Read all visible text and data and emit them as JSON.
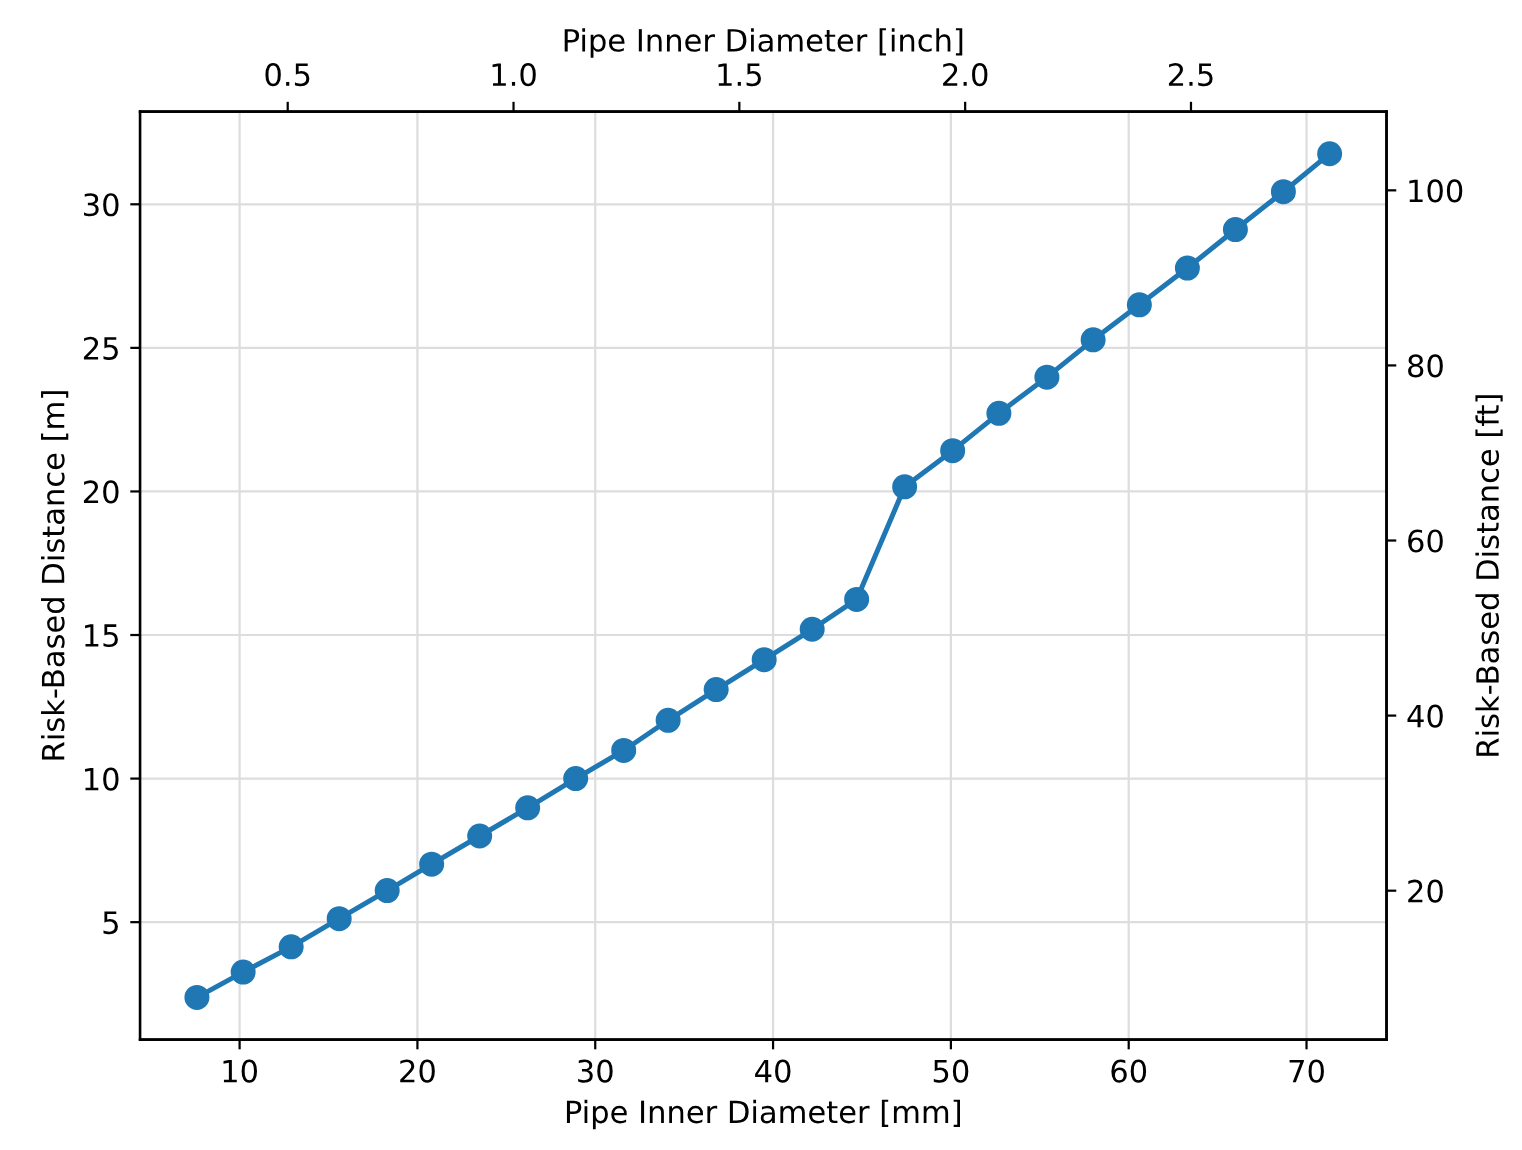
{
  "chart_data": {
    "type": "line",
    "xlabel": "Pipe Inner Diameter [mm]",
    "ylabel": "Risk-Based Distance [m]",
    "x2label": "Pipe Inner Diameter [inch]",
    "y2label": "Risk-Based Distance [ft]",
    "x": [
      7.6,
      10.2,
      12.9,
      15.6,
      18.3,
      20.8,
      23.5,
      26.2,
      28.9,
      31.6,
      34.1,
      36.8,
      39.5,
      42.2,
      44.7,
      47.4,
      50.1,
      52.7,
      55.4,
      58.0,
      60.6,
      63.3,
      66.0,
      68.7,
      71.3
    ],
    "series": [
      {
        "color": "#1f77b4",
        "values": [
          2.38,
          3.26,
          4.14,
          5.12,
          6.1,
          7.02,
          8.0,
          8.98,
          10.0,
          10.98,
          12.03,
          13.1,
          14.14,
          15.2,
          16.24,
          20.16,
          21.42,
          22.72,
          23.98,
          25.28,
          26.5,
          27.78,
          29.12,
          30.44,
          31.76
        ]
      }
    ],
    "xlim": [
      4.4,
      74.5
    ],
    "xticks": [
      10,
      20,
      30,
      40,
      50,
      60,
      70
    ],
    "ylim": [
      0.91,
      33.23
    ],
    "yticks": [
      5,
      10,
      15,
      20,
      25,
      30
    ],
    "x2lim": [
      0.173,
      2.933
    ],
    "x2ticks": [
      0.5,
      {
        "value": 1,
        "label": "1.0"
      },
      1.5,
      {
        "value": 2,
        "label": "2.0"
      },
      2.5
    ],
    "y2lim": [
      2.99,
      109.0
    ],
    "y2ticks": [
      20,
      40,
      60,
      80,
      100
    ],
    "grid": true,
    "marker": "circle",
    "line_style": "solid"
  }
}
